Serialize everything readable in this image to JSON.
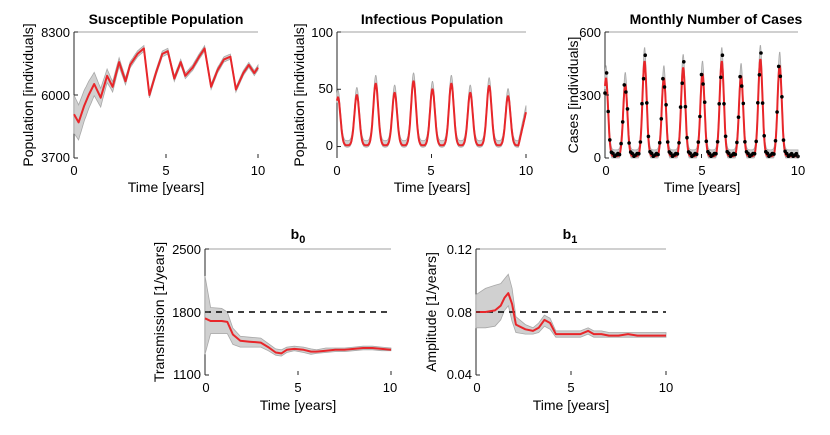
{
  "colors": {
    "mean": "#e8262a",
    "band": "#d0d0d0",
    "band_edge": "#a8a8a8",
    "obs": "#000000"
  },
  "chart_data": [
    {
      "id": "susceptible",
      "type": "line",
      "title": "Susceptible Population",
      "xlabel": "Time [years]",
      "ylabel": "Population [individuals]",
      "xlim": [
        0,
        10
      ],
      "ylim": [
        3700,
        8300
      ],
      "xticks": [
        0,
        5,
        10
      ],
      "xtick_labels": [
        "0",
        "5",
        "10"
      ],
      "yticks": [
        3700,
        6000,
        8300
      ],
      "ytick_labels": [
        "3700",
        "6000",
        "8300"
      ],
      "series": [
        {
          "name": "mean",
          "x": [
            0,
            0.25,
            0.55,
            0.8,
            1.1,
            1.45,
            1.8,
            2.1,
            2.45,
            2.8,
            3.05,
            3.45,
            3.8,
            4.1,
            4.45,
            4.8,
            5.1,
            5.45,
            5.8,
            6.05,
            6.45,
            6.8,
            7.1,
            7.45,
            7.8,
            8.15,
            8.5,
            8.8,
            9.2,
            9.5,
            9.8,
            10
          ],
          "y": [
            5300,
            5000,
            5600,
            6000,
            6400,
            5900,
            6700,
            6300,
            7200,
            6500,
            7100,
            7500,
            7700,
            6000,
            6800,
            7500,
            7600,
            6600,
            7200,
            6700,
            7000,
            7400,
            7700,
            6300,
            6900,
            7300,
            7400,
            6200,
            6800,
            7100,
            6800,
            7000
          ]
        },
        {
          "name": "uncertainty_halfwidth",
          "x": [
            0,
            1,
            2,
            3,
            10
          ],
          "y": [
            700,
            450,
            200,
            110,
            90
          ]
        }
      ]
    },
    {
      "id": "infectious",
      "type": "line",
      "title": "Infectious Population",
      "xlabel": "Time [years]",
      "ylabel": "Population [individuals]",
      "xlim": [
        0,
        10
      ],
      "ylim": [
        -10,
        100
      ],
      "xticks": [
        0,
        5,
        10
      ],
      "xtick_labels": [
        "0",
        "5",
        "10"
      ],
      "yticks": [
        0,
        50,
        100
      ],
      "ytick_labels": [
        "0",
        "50",
        "100"
      ],
      "series": [
        {
          "name": "mean",
          "peaks_x": [
            0.05,
            1.05,
            2.05,
            3.05,
            4.05,
            5.05,
            6.05,
            7.05,
            8.05,
            9.05
          ],
          "peaks_y": [
            43,
            45,
            55,
            47,
            57,
            50,
            55,
            47,
            53,
            44
          ],
          "end_y": 30
        },
        {
          "name": "uncertainty_halfwidth",
          "y": [
            4
          ]
        }
      ]
    },
    {
      "id": "cases",
      "type": "line",
      "title": "Monthly Number of Cases",
      "xlabel": "Time [years]",
      "ylabel": "Cases [individuals]",
      "xlim": [
        0,
        10
      ],
      "ylim": [
        0,
        600
      ],
      "xticks": [
        0,
        5,
        10
      ],
      "xtick_labels": [
        "0",
        "5",
        "10"
      ],
      "yticks": [
        0,
        300,
        600
      ],
      "ytick_labels": [
        "0",
        "300",
        "600"
      ],
      "series": [
        {
          "name": "mean",
          "peaks_x": [
            0.05,
            1.05,
            2.05,
            3.05,
            4.05,
            5.05,
            6.05,
            7.05,
            8.05,
            9.05
          ],
          "peaks_y": [
            380,
            350,
            460,
            380,
            430,
            400,
            460,
            390,
            470,
            440
          ]
        },
        {
          "name": "observed",
          "note": "monthly observations (black dots)"
        },
        {
          "name": "uncertainty_halfwidth",
          "y": [
            30
          ]
        }
      ]
    },
    {
      "id": "b0",
      "type": "line",
      "title": "b",
      "title_sub": "0",
      "xlabel": "Time [years]",
      "ylabel": "Transmission [1/years]",
      "xlim": [
        0,
        10
      ],
      "ylim": [
        1100,
        2500
      ],
      "xticks": [
        0,
        5,
        10
      ],
      "xtick_labels": [
        "0",
        "5",
        "10"
      ],
      "yticks": [
        1100,
        1800,
        2500
      ],
      "ytick_labels": [
        "1100",
        "1800",
        "2500"
      ],
      "reference_line": 1800,
      "series": [
        {
          "name": "mean",
          "x": [
            0,
            0.3,
            0.9,
            1.2,
            1.5,
            1.9,
            2.4,
            3.0,
            3.4,
            3.8,
            4.1,
            4.4,
            4.8,
            5.3,
            5.7,
            6.0,
            6.5,
            7.0,
            7.5,
            8.0,
            8.5,
            9.0,
            9.5,
            10
          ],
          "y": [
            1730,
            1700,
            1700,
            1690,
            1550,
            1480,
            1470,
            1460,
            1410,
            1350,
            1340,
            1380,
            1390,
            1380,
            1360,
            1360,
            1370,
            1380,
            1380,
            1390,
            1400,
            1400,
            1390,
            1380
          ]
        },
        {
          "name": "band_lower",
          "x": [
            0,
            0.3,
            0.9,
            1.2,
            1.5,
            1.9,
            2.4,
            3.0,
            3.4,
            3.8,
            4.1,
            4.4,
            4.8,
            5.3,
            5.7,
            6.0,
            6.5,
            7.0,
            7.5,
            8.0,
            8.5,
            9.0,
            9.5,
            10
          ],
          "y": [
            1330,
            1560,
            1560,
            1560,
            1440,
            1410,
            1410,
            1410,
            1370,
            1320,
            1310,
            1350,
            1370,
            1350,
            1330,
            1340,
            1350,
            1360,
            1360,
            1370,
            1380,
            1380,
            1370,
            1370
          ]
        },
        {
          "name": "band_upper",
          "x": [
            0,
            0.3,
            0.9,
            1.2,
            1.5,
            1.9,
            2.4,
            3.0,
            3.4,
            3.8,
            4.1,
            4.4,
            4.8,
            5.3,
            5.7,
            6.0,
            6.5,
            7.0,
            7.5,
            8.0,
            8.5,
            9.0,
            9.5,
            10
          ],
          "y": [
            2200,
            1850,
            1840,
            1800,
            1620,
            1530,
            1520,
            1510,
            1450,
            1390,
            1380,
            1410,
            1420,
            1410,
            1390,
            1380,
            1400,
            1400,
            1400,
            1410,
            1420,
            1420,
            1410,
            1400
          ]
        }
      ]
    },
    {
      "id": "b1",
      "type": "line",
      "title": "b",
      "title_sub": "1",
      "xlabel": "Time [years]",
      "ylabel": "Amplitude [1/years]",
      "xlim": [
        0,
        10
      ],
      "ylim": [
        0.04,
        0.12
      ],
      "xticks": [
        0,
        5,
        10
      ],
      "xtick_labels": [
        "0",
        "5",
        "10"
      ],
      "yticks": [
        0.04,
        0.08,
        0.12
      ],
      "ytick_labels": [
        "0.04",
        "0.08",
        "0.12"
      ],
      "reference_line": 0.08,
      "series": [
        {
          "name": "mean",
          "x": [
            0,
            0.5,
            1.0,
            1.3,
            1.5,
            1.7,
            1.9,
            2.1,
            2.6,
            3.0,
            3.3,
            3.6,
            3.9,
            4.2,
            5.0,
            5.5,
            5.9,
            6.2,
            6.6,
            7.0,
            7.5,
            8.0,
            8.5,
            9.0,
            9.5,
            10
          ],
          "y": [
            0.08,
            0.08,
            0.081,
            0.084,
            0.089,
            0.092,
            0.085,
            0.072,
            0.069,
            0.068,
            0.07,
            0.075,
            0.073,
            0.066,
            0.066,
            0.066,
            0.068,
            0.066,
            0.066,
            0.065,
            0.065,
            0.066,
            0.065,
            0.065,
            0.065,
            0.065
          ]
        },
        {
          "name": "band_lower",
          "x": [
            0,
            0.5,
            1.0,
            1.3,
            1.5,
            1.7,
            1.9,
            2.1,
            2.6,
            3.0,
            3.3,
            3.6,
            3.9,
            4.2,
            5.0,
            5.5,
            5.9,
            6.2,
            6.6,
            7.0,
            7.5,
            8.0,
            8.5,
            9.0,
            9.5,
            10
          ],
          "y": [
            0.07,
            0.07,
            0.071,
            0.075,
            0.081,
            0.084,
            0.074,
            0.067,
            0.066,
            0.066,
            0.067,
            0.071,
            0.069,
            0.064,
            0.064,
            0.064,
            0.066,
            0.064,
            0.064,
            0.064,
            0.064,
            0.064,
            0.064,
            0.064,
            0.064,
            0.064
          ]
        },
        {
          "name": "band_upper",
          "x": [
            0,
            0.5,
            1.0,
            1.3,
            1.5,
            1.7,
            1.9,
            2.1,
            2.6,
            3.0,
            3.3,
            3.6,
            3.9,
            4.2,
            5.0,
            5.5,
            5.9,
            6.2,
            6.6,
            7.0,
            7.5,
            8.0,
            8.5,
            9.0,
            9.5,
            10
          ],
          "y": [
            0.091,
            0.095,
            0.097,
            0.098,
            0.101,
            0.104,
            0.095,
            0.077,
            0.072,
            0.07,
            0.073,
            0.078,
            0.076,
            0.068,
            0.068,
            0.068,
            0.07,
            0.068,
            0.068,
            0.067,
            0.067,
            0.067,
            0.067,
            0.067,
            0.067,
            0.067
          ]
        }
      ]
    }
  ]
}
